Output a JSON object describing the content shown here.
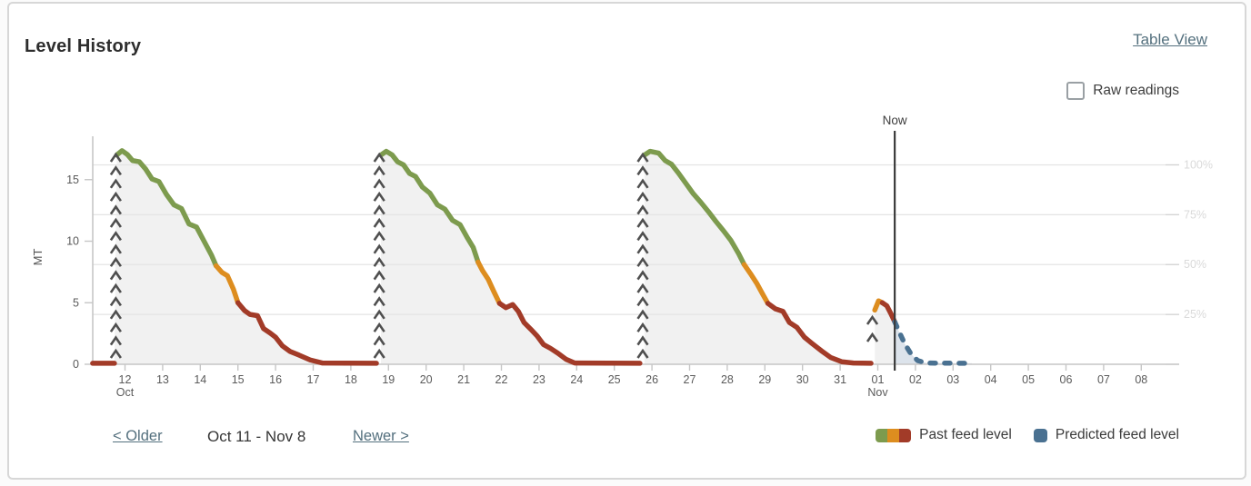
{
  "header": {
    "title": "Level History",
    "table_view": "Table View",
    "raw_readings": "Raw readings"
  },
  "pagination": {
    "older": "< Older",
    "range": "Oct 11 - Nov 8",
    "newer": "Newer >"
  },
  "chart_data": {
    "type": "line",
    "ylabel": "MT",
    "ylim_mt": [
      0,
      18.4
    ],
    "capacity_mt": 16.2,
    "x_unit": "day (Oct 11 = 11 ... Nov 8 = 39)",
    "xlim": [
      11.1,
      39.6
    ],
    "grid": true,
    "left_ticks": [
      {
        "v": 0,
        "label": "0"
      },
      {
        "v": 5,
        "label": "5"
      },
      {
        "v": 10,
        "label": "10"
      },
      {
        "v": 15,
        "label": "15"
      }
    ],
    "right_ticks": [
      {
        "pct": 0,
        "label": ""
      },
      {
        "pct": 25,
        "label": "25%"
      },
      {
        "pct": 50,
        "label": "50%"
      },
      {
        "pct": 75,
        "label": "75%"
      },
      {
        "pct": 100,
        "label": "100%"
      }
    ],
    "x_ticks": [
      {
        "d": 12,
        "label": "12",
        "sub": "Oct"
      },
      {
        "d": 13,
        "label": "13"
      },
      {
        "d": 14,
        "label": "14"
      },
      {
        "d": 15,
        "label": "15"
      },
      {
        "d": 16,
        "label": "16"
      },
      {
        "d": 17,
        "label": "17"
      },
      {
        "d": 18,
        "label": "18"
      },
      {
        "d": 19,
        "label": "19"
      },
      {
        "d": 20,
        "label": "20"
      },
      {
        "d": 21,
        "label": "21"
      },
      {
        "d": 22,
        "label": "22"
      },
      {
        "d": 23,
        "label": "23"
      },
      {
        "d": 24,
        "label": "24"
      },
      {
        "d": 25,
        "label": "25"
      },
      {
        "d": 26,
        "label": "26"
      },
      {
        "d": 27,
        "label": "27"
      },
      {
        "d": 28,
        "label": "28"
      },
      {
        "d": 29,
        "label": "29"
      },
      {
        "d": 30,
        "label": "30"
      },
      {
        "d": 31,
        "label": "31"
      },
      {
        "d": 32,
        "label": "01",
        "sub": "Nov"
      },
      {
        "d": 33,
        "label": "02"
      },
      {
        "d": 34,
        "label": "03"
      },
      {
        "d": 35,
        "label": "04"
      },
      {
        "d": 36,
        "label": "05"
      },
      {
        "d": 37,
        "label": "06"
      },
      {
        "d": 38,
        "label": "07"
      },
      {
        "d": 39,
        "label": "08"
      }
    ],
    "now": {
      "label": "Now",
      "day": 32.45
    },
    "refills": [
      {
        "day": 11.78,
        "chevrons": 16
      },
      {
        "day": 18.78,
        "chevrons": 16
      },
      {
        "day": 25.78,
        "chevrons": 16
      },
      {
        "day": 31.88,
        "chevrons": 2
      }
    ],
    "past_cycles": [
      {
        "segments": [
          {
            "color": "red",
            "points": [
              [
                11.14,
                0.08
              ],
              [
                11.72,
                0.08
              ]
            ]
          },
          {
            "color": "green",
            "points": [
              [
                11.78,
                17.0
              ],
              [
                11.92,
                17.35
              ],
              [
                12.06,
                17.05
              ],
              [
                12.2,
                16.55
              ],
              [
                12.38,
                16.45
              ],
              [
                12.55,
                15.85
              ],
              [
                12.72,
                15.05
              ],
              [
                12.9,
                14.85
              ],
              [
                13.1,
                13.8
              ],
              [
                13.3,
                12.95
              ],
              [
                13.5,
                12.65
              ],
              [
                13.7,
                11.4
              ],
              [
                13.9,
                11.15
              ],
              [
                14.1,
                10.0
              ],
              [
                14.3,
                8.85
              ],
              [
                14.42,
                8.0
              ]
            ]
          },
          {
            "color": "orange",
            "points": [
              [
                14.42,
                8.0
              ],
              [
                14.58,
                7.45
              ],
              [
                14.72,
                7.2
              ],
              [
                14.88,
                6.1
              ],
              [
                15.0,
                5.0
              ]
            ]
          },
          {
            "color": "red",
            "points": [
              [
                15.0,
                5.0
              ],
              [
                15.18,
                4.35
              ],
              [
                15.32,
                4.05
              ],
              [
                15.52,
                3.95
              ],
              [
                15.68,
                2.9
              ],
              [
                15.85,
                2.55
              ],
              [
                16.0,
                2.2
              ],
              [
                16.18,
                1.5
              ],
              [
                16.38,
                1.05
              ],
              [
                16.62,
                0.75
              ],
              [
                16.92,
                0.35
              ],
              [
                17.25,
                0.1
              ],
              [
                18.68,
                0.08
              ]
            ]
          }
        ]
      },
      {
        "segments": [
          {
            "color": "green",
            "points": [
              [
                18.8,
                17.0
              ],
              [
                18.94,
                17.3
              ],
              [
                19.1,
                17.0
              ],
              [
                19.24,
                16.45
              ],
              [
                19.4,
                16.2
              ],
              [
                19.56,
                15.5
              ],
              [
                19.72,
                15.25
              ],
              [
                19.9,
                14.4
              ],
              [
                20.1,
                13.9
              ],
              [
                20.3,
                12.95
              ],
              [
                20.5,
                12.6
              ],
              [
                20.7,
                11.7
              ],
              [
                20.9,
                11.35
              ],
              [
                21.1,
                10.25
              ],
              [
                21.25,
                9.5
              ],
              [
                21.38,
                8.3
              ]
            ]
          },
          {
            "color": "orange",
            "points": [
              [
                21.38,
                8.3
              ],
              [
                21.5,
                7.6
              ],
              [
                21.65,
                6.9
              ],
              [
                21.8,
                5.9
              ],
              [
                21.95,
                4.95
              ]
            ]
          },
          {
            "color": "red",
            "points": [
              [
                21.95,
                4.95
              ],
              [
                22.12,
                4.6
              ],
              [
                22.3,
                4.85
              ],
              [
                22.45,
                4.3
              ],
              [
                22.6,
                3.4
              ],
              [
                22.78,
                2.85
              ],
              [
                22.95,
                2.3
              ],
              [
                23.12,
                1.6
              ],
              [
                23.3,
                1.3
              ],
              [
                23.5,
                0.9
              ],
              [
                23.72,
                0.4
              ],
              [
                23.95,
                0.1
              ],
              [
                25.68,
                0.08
              ]
            ]
          }
        ]
      },
      {
        "segments": [
          {
            "color": "green",
            "points": [
              [
                25.8,
                17.0
              ],
              [
                25.95,
                17.3
              ],
              [
                26.18,
                17.15
              ],
              [
                26.35,
                16.55
              ],
              [
                26.52,
                16.25
              ],
              [
                26.7,
                15.55
              ],
              [
                26.9,
                14.7
              ],
              [
                27.1,
                13.85
              ],
              [
                27.3,
                13.15
              ],
              [
                27.5,
                12.4
              ],
              [
                27.7,
                11.6
              ],
              [
                27.9,
                10.85
              ],
              [
                28.1,
                10.05
              ],
              [
                28.3,
                9.0
              ],
              [
                28.45,
                8.1
              ]
            ]
          },
          {
            "color": "orange",
            "points": [
              [
                28.45,
                8.1
              ],
              [
                28.62,
                7.35
              ],
              [
                28.78,
                6.6
              ],
              [
                28.95,
                5.65
              ],
              [
                29.08,
                4.95
              ]
            ]
          },
          {
            "color": "red",
            "points": [
              [
                29.08,
                4.95
              ],
              [
                29.28,
                4.5
              ],
              [
                29.48,
                4.3
              ],
              [
                29.65,
                3.4
              ],
              [
                29.85,
                3.0
              ],
              [
                30.05,
                2.2
              ],
              [
                30.25,
                1.7
              ],
              [
                30.5,
                1.1
              ],
              [
                30.75,
                0.55
              ],
              [
                31.05,
                0.2
              ],
              [
                31.35,
                0.1
              ],
              [
                31.82,
                0.08
              ]
            ]
          }
        ]
      },
      {
        "segments": [
          {
            "color": "orange",
            "points": [
              [
                31.92,
                4.4
              ],
              [
                32.02,
                5.15
              ],
              [
                32.12,
                5.0
              ]
            ]
          },
          {
            "color": "red",
            "points": [
              [
                32.12,
                5.0
              ],
              [
                32.24,
                4.75
              ],
              [
                32.35,
                4.1
              ],
              [
                32.45,
                3.45
              ]
            ]
          }
        ]
      }
    ],
    "predicted": {
      "color": "blue",
      "points": [
        [
          32.45,
          3.45
        ],
        [
          32.58,
          2.55
        ],
        [
          32.72,
          1.65
        ],
        [
          32.88,
          0.85
        ],
        [
          33.06,
          0.3
        ],
        [
          33.3,
          0.1
        ],
        [
          34.5,
          0.08
        ]
      ]
    },
    "legend": [
      {
        "label": "Past feed level",
        "swatch": [
          "green",
          "orange",
          "red"
        ]
      },
      {
        "label": "Predicted feed level",
        "swatch": [
          "blue"
        ]
      }
    ],
    "colors": {
      "green": "#7d9b4e",
      "orange": "#dd8d1f",
      "red": "#a23b28",
      "blue": "#4a7191",
      "past_area": "#f1f1f1",
      "predicted_area": "#dce3eb",
      "grid": "#e4e4e4",
      "axis": "#c6c6c6",
      "tick_label": "#5a5a5a",
      "right_label": "#dadada",
      "chevron": "#4f4f4f",
      "now_line": "#3b3b3b",
      "now_label": "#3d3d3d"
    }
  }
}
